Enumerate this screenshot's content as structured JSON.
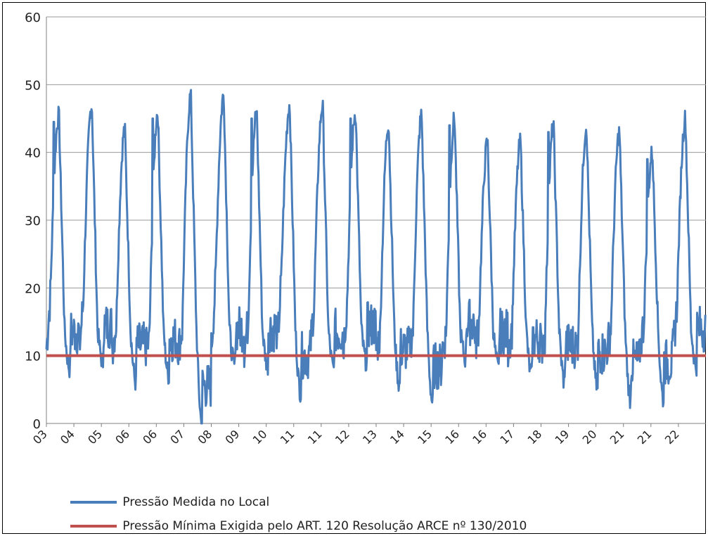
{
  "chart_data": {
    "type": "line",
    "title": "",
    "xlabel": "",
    "ylabel": "",
    "ylim": [
      0,
      60
    ],
    "yticks": [
      0,
      10,
      20,
      30,
      40,
      50,
      60
    ],
    "categories": [
      "03",
      "04",
      "05",
      "06",
      "06",
      "07",
      "08",
      "09",
      "10",
      "11",
      "11",
      "12",
      "13",
      "14",
      "15",
      "16",
      "16",
      "17",
      "18",
      "19",
      "20",
      "21",
      "21",
      "22"
    ],
    "grid": "horizontal",
    "legend_position": "bottom",
    "series": [
      {
        "name": "Pressão Medida no Local",
        "color": "#4a7ebb",
        "peaks": [
          45.5,
          47,
          43.5,
          46,
          48.5,
          48.5,
          46,
          47,
          47,
          46,
          44.5,
          45.5,
          45,
          41.5,
          41.5,
          44,
          44,
          43,
          40,
          45
        ],
        "troughs": [
          8,
          9,
          6,
          7,
          0,
          8.5,
          8.5,
          4.5,
          8,
          9,
          5.5,
          3,
          9.5,
          8,
          7,
          6,
          5,
          3.5,
          3.5,
          8.5
        ],
        "mid_levels": [
          19,
          18,
          15,
          12,
          14,
          20,
          15,
          21,
          18,
          18,
          13,
          14,
          13,
          15,
          14,
          13,
          12,
          14,
          15,
          17
        ]
      },
      {
        "name": "Pressão Mínima Exigida pelo ART. 120 Resolução ARCE nº 130/2010",
        "color": "#c0504d",
        "value": 10
      }
    ]
  }
}
